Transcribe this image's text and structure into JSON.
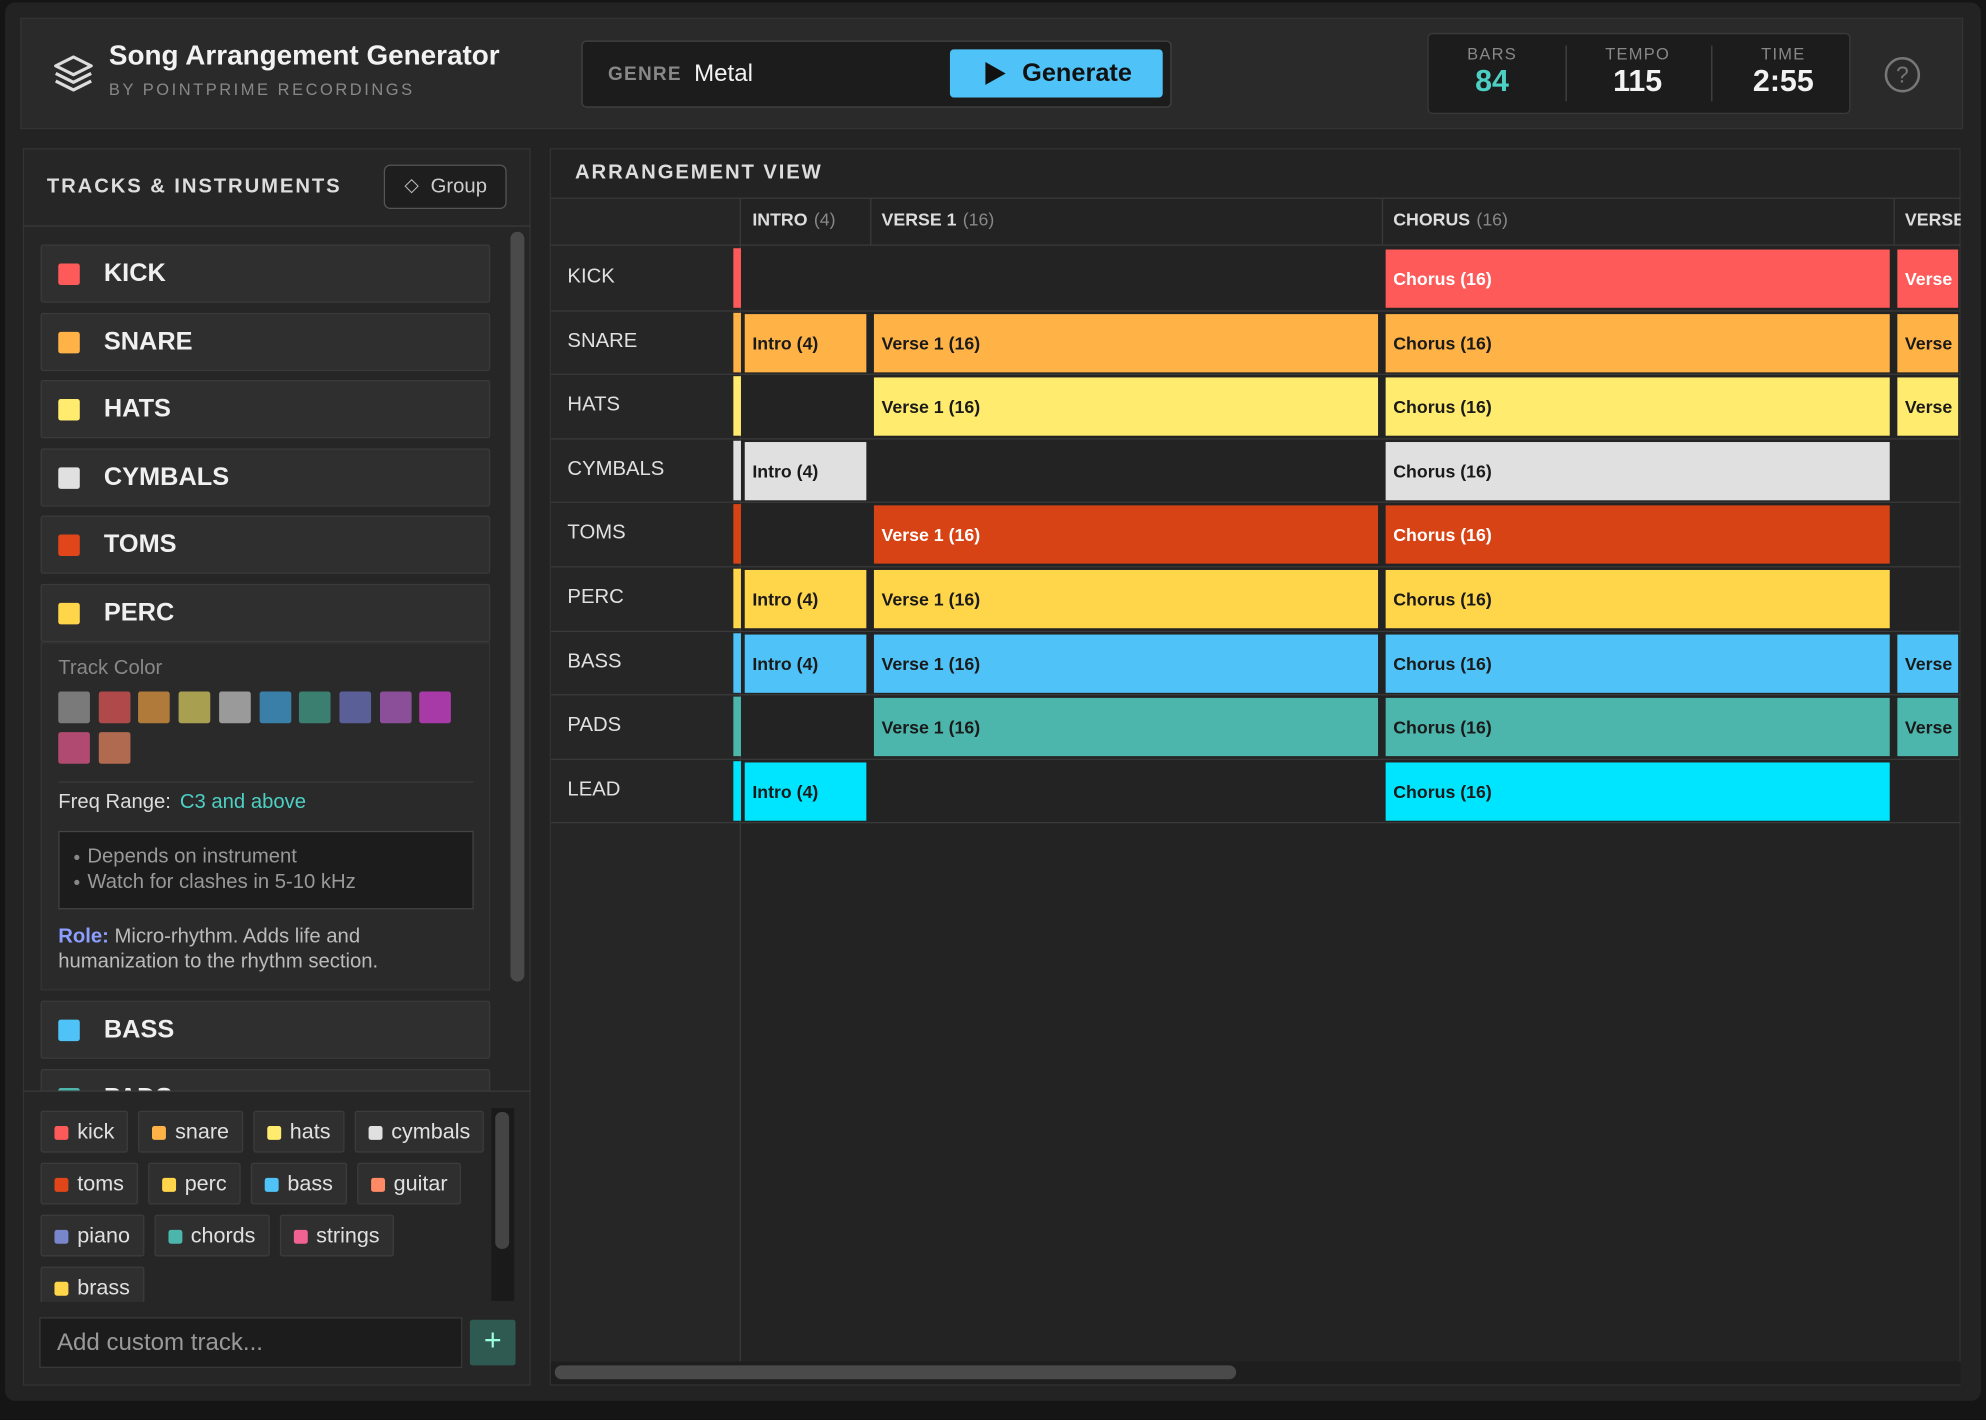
{
  "header": {
    "title": "Song Arrangement Generator",
    "subtitle": "BY POINTPRIME RECORDINGS",
    "genre_label": "GENRE",
    "genre": "Metal",
    "button": "Generate",
    "stats": [
      {
        "label": "BARS",
        "value": "84"
      },
      {
        "label": "TEMPO",
        "value": "115"
      },
      {
        "label": "TIME",
        "value": "2:55"
      }
    ],
    "help": "?"
  },
  "sidebar": {
    "title": "TRACKS & INSTRUMENTS",
    "group_button": "Group",
    "tracks": [
      {
        "name": "KICK",
        "color": "#ff5a5a"
      },
      {
        "name": "SNARE",
        "color": "#ffb347"
      },
      {
        "name": "HATS",
        "color": "#ffec6e"
      },
      {
        "name": "CYMBALS",
        "color": "#e0e0e0"
      },
      {
        "name": "TOMS",
        "color": "#e0461a"
      },
      {
        "name": "PERC",
        "color": "#ffd54a"
      },
      {
        "name": "BASS",
        "color": "#4fc3f7"
      },
      {
        "name": "PADS",
        "color": "#4db6ac"
      }
    ],
    "expanded": {
      "color_label": "Track Color",
      "swatches": [
        "#7a7a7a",
        "#b04a4a",
        "#b07a3a",
        "#a8a050",
        "#9a9a9a",
        "#3a7fa8",
        "#3a7f70",
        "#5a5f98",
        "#8a4f98",
        "#a83aa8",
        "#b04a70",
        "#b06a50"
      ],
      "freq_label": "Freq Range:",
      "freq_value": "C3 and above",
      "notes": [
        "Depends on instrument",
        "Watch for clashes in 5-10 kHz"
      ],
      "role_label": "Role:",
      "role_text": "Micro-rhythm. Adds life and humanization to the rhythm section."
    },
    "tags": [
      {
        "name": "kick",
        "color": "#ff5a5a"
      },
      {
        "name": "snare",
        "color": "#ffb347"
      },
      {
        "name": "hats",
        "color": "#ffec6e"
      },
      {
        "name": "cymbals",
        "color": "#e0e0e0"
      },
      {
        "name": "toms",
        "color": "#e0461a"
      },
      {
        "name": "perc",
        "color": "#ffd54a"
      },
      {
        "name": "bass",
        "color": "#4fc3f7"
      },
      {
        "name": "guitar",
        "color": "#ff8a65"
      },
      {
        "name": "piano",
        "color": "#7986cb"
      },
      {
        "name": "chords",
        "color": "#4db6ac"
      },
      {
        "name": "strings",
        "color": "#f06292"
      },
      {
        "name": "brass",
        "color": "#ffd54a"
      }
    ],
    "input_placeholder": "Add custom track...",
    "add_button": "+"
  },
  "arrangement": {
    "title": "ARRANGEMENT VIEW",
    "sections": [
      {
        "name": "INTRO",
        "bars": "(4)"
      },
      {
        "name": "VERSE 1",
        "bars": "(16)"
      },
      {
        "name": "CHORUS",
        "bars": "(16)"
      },
      {
        "name": "VERSE",
        "bars": ""
      }
    ],
    "rows": [
      {
        "track": "KICK",
        "color": "#ff5a5a",
        "clips": [
          null,
          null,
          "Chorus (16)",
          "Verse"
        ]
      },
      {
        "track": "SNARE",
        "color": "#ffb347",
        "clips": [
          "Intro (4)",
          "Verse 1 (16)",
          "Chorus (16)",
          "Verse"
        ]
      },
      {
        "track": "HATS",
        "color": "#ffec6e",
        "clips": [
          null,
          "Verse 1 (16)",
          "Chorus (16)",
          "Verse"
        ]
      },
      {
        "track": "CYMBALS",
        "color": "#e0e0e0",
        "clips": [
          "Intro (4)",
          null,
          "Chorus (16)",
          null
        ]
      },
      {
        "track": "TOMS",
        "color": "#d84315",
        "clips": [
          null,
          "Verse 1 (16)",
          "Chorus (16)",
          null
        ]
      },
      {
        "track": "PERC",
        "color": "#ffd54a",
        "clips": [
          "Intro (4)",
          "Verse 1 (16)",
          "Chorus (16)",
          null
        ]
      },
      {
        "track": "BASS",
        "color": "#4fc3f7",
        "clips": [
          "Intro (4)",
          "Verse 1 (16)",
          "Chorus (16)",
          "Verse"
        ]
      },
      {
        "track": "PADS",
        "color": "#4db6ac",
        "clips": [
          null,
          "Verse 1 (16)",
          "Chorus (16)",
          "Verse"
        ]
      },
      {
        "track": "LEAD",
        "color": "#00e5ff",
        "clips": [
          "Intro (4)",
          null,
          "Chorus (16)",
          null
        ]
      }
    ]
  }
}
